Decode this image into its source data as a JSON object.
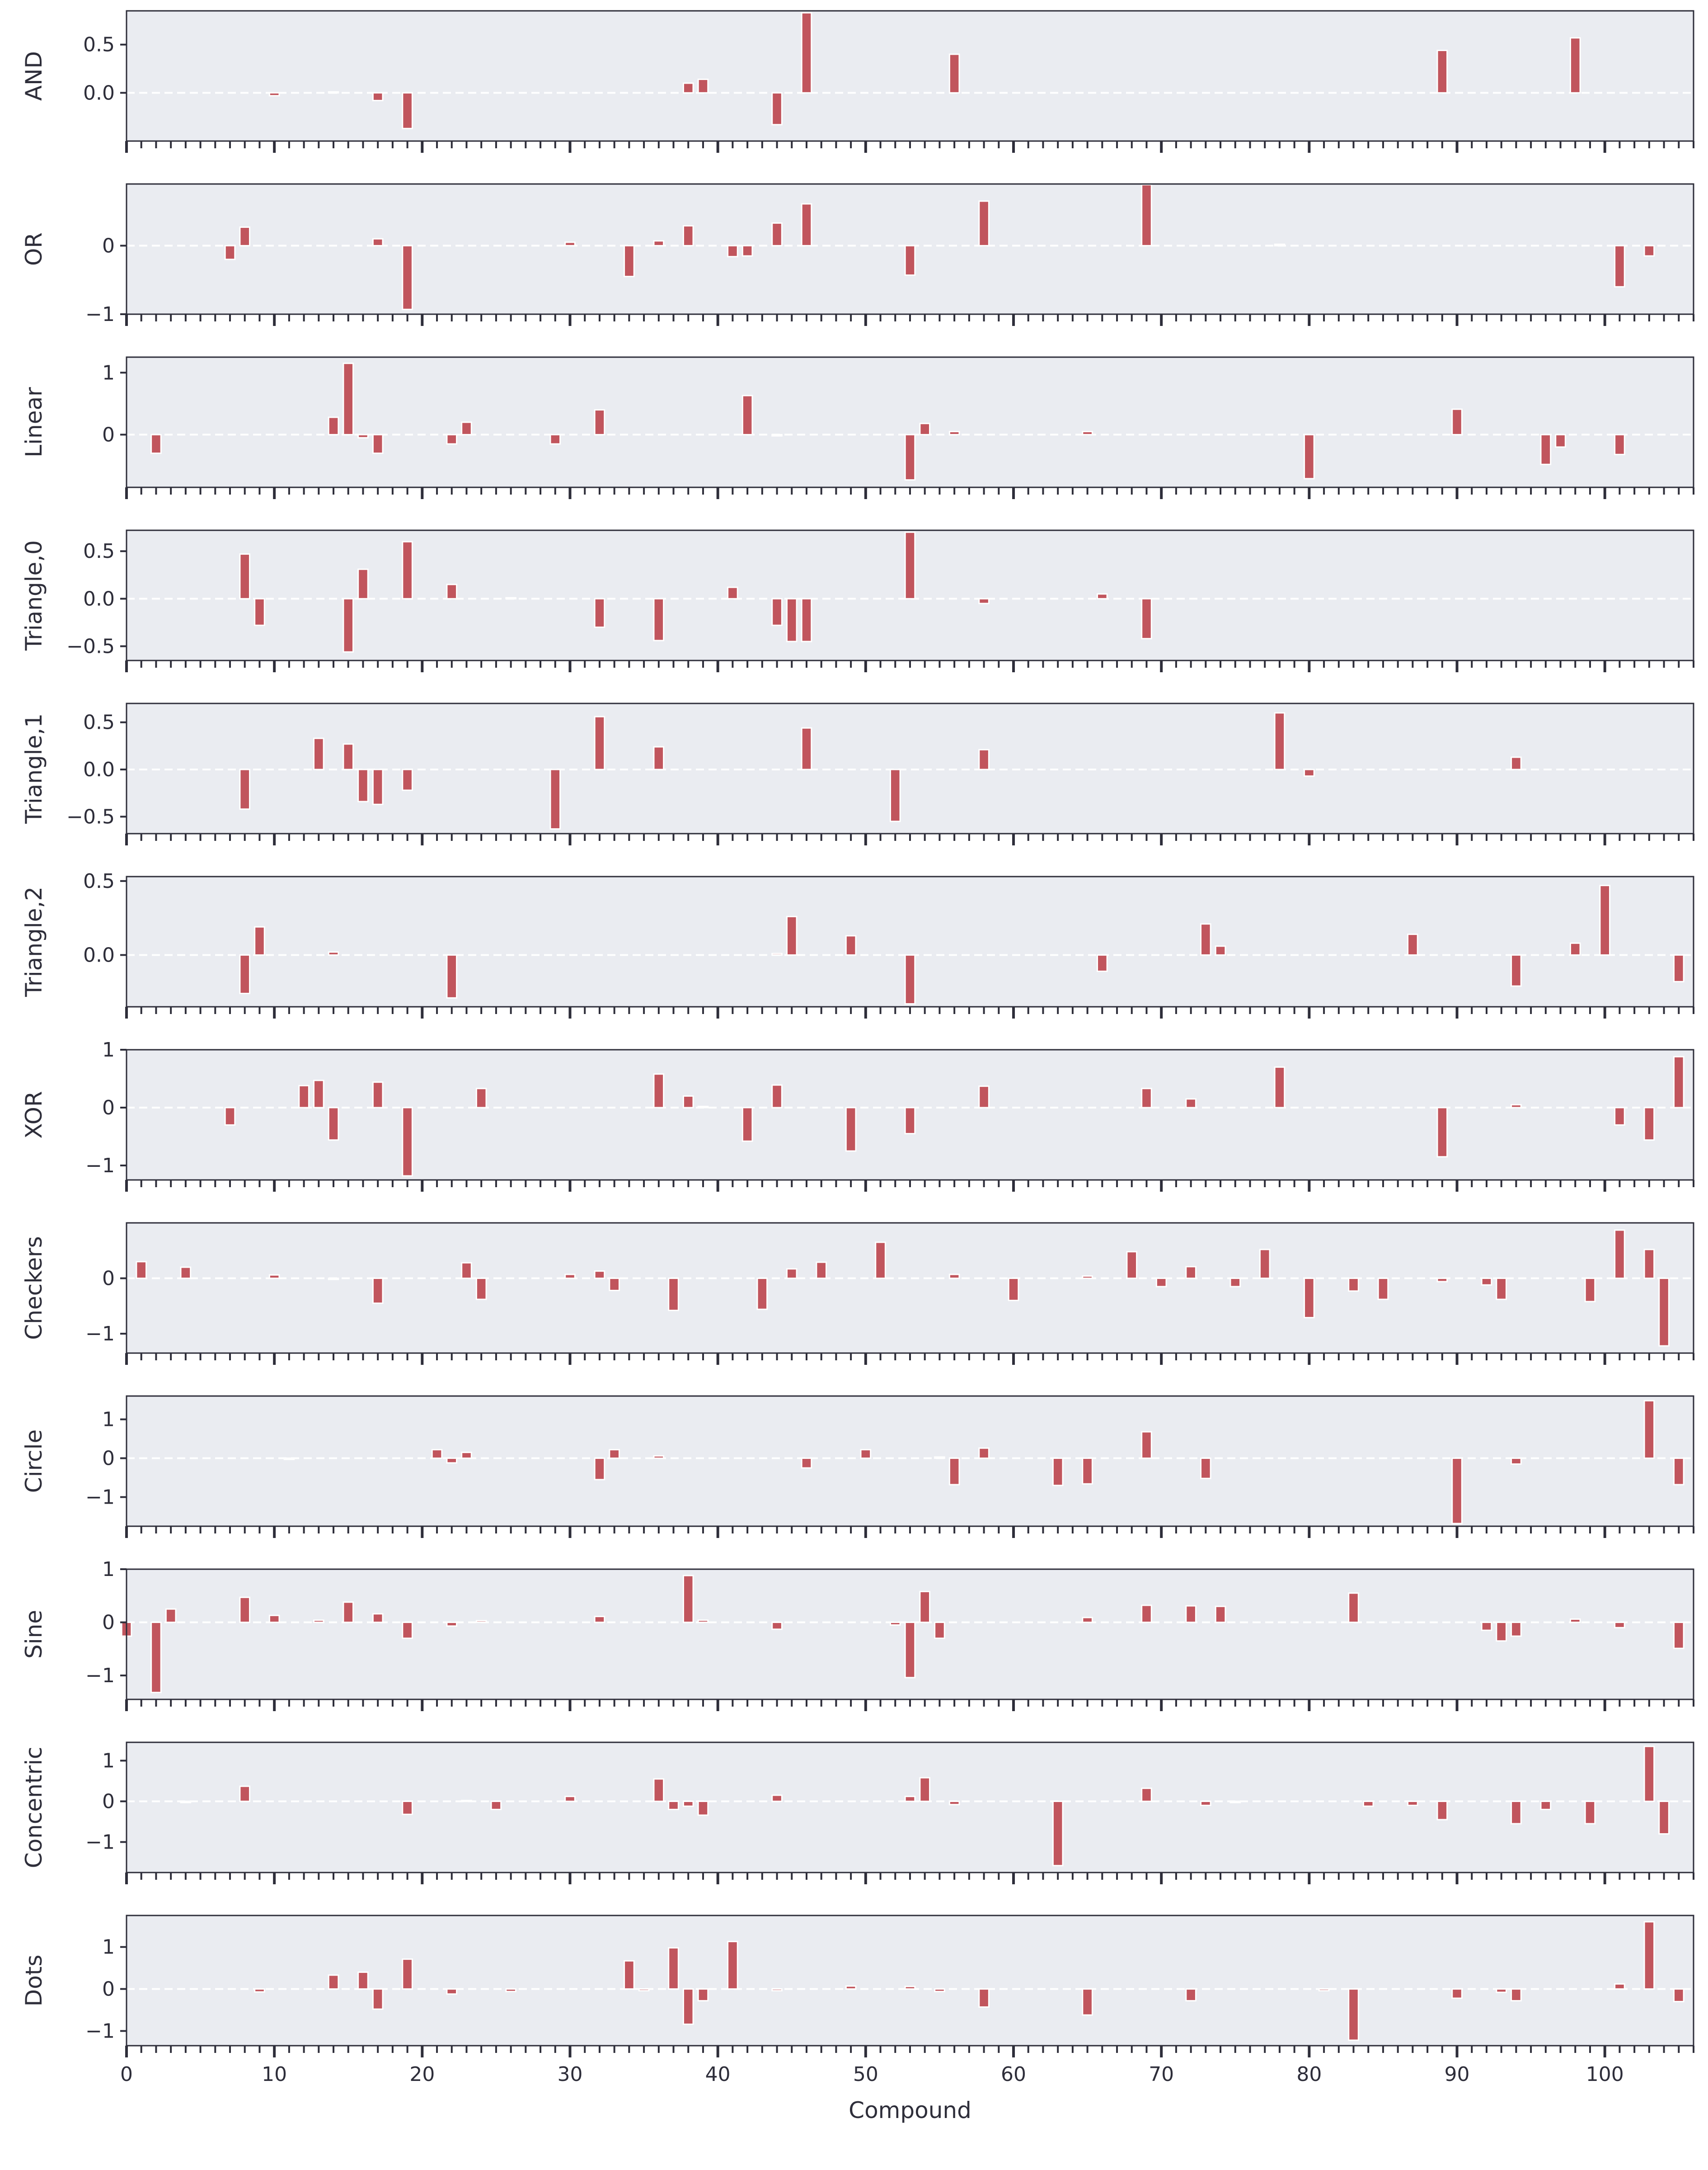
{
  "chart_data": {
    "type": "bar",
    "subplots": 12,
    "shared_x": true,
    "xlabel": "Compound",
    "xlim": [
      0,
      106
    ],
    "x_ticks": [
      0,
      10,
      20,
      30,
      40,
      50,
      60,
      70,
      80,
      90,
      100
    ],
    "x_minor_step": 1,
    "bar_color": "#c1555d",
    "bar_edge_color": "#ffffff",
    "background": "#eaecf1",
    "zero_line": "white-dashed",
    "panels": [
      {
        "ylabel": "AND",
        "ylim": [
          -0.5,
          0.85
        ],
        "yticks": [
          0.0,
          0.5
        ],
        "ytick_labels": [
          "0.0",
          "0.5"
        ],
        "bars": [
          [
            10,
            -0.03
          ],
          [
            14,
            0.01
          ],
          [
            17,
            -0.08
          ],
          [
            19,
            -0.37
          ],
          [
            38,
            0.1
          ],
          [
            39,
            0.14
          ],
          [
            44,
            -0.33
          ],
          [
            46,
            0.83
          ],
          [
            56,
            0.4
          ],
          [
            89,
            0.44
          ],
          [
            98,
            0.57
          ]
        ]
      },
      {
        "ylabel": "OR",
        "ylim": [
          -1.0,
          0.9
        ],
        "yticks": [
          -1,
          0
        ],
        "ytick_labels": [
          "−1",
          "0"
        ],
        "bars": [
          [
            7,
            -0.2
          ],
          [
            8,
            0.27
          ],
          [
            17,
            0.1
          ],
          [
            19,
            -0.93
          ],
          [
            30,
            0.05
          ],
          [
            34,
            -0.45
          ],
          [
            36,
            0.07
          ],
          [
            38,
            0.29
          ],
          [
            41,
            -0.16
          ],
          [
            42,
            -0.15
          ],
          [
            44,
            0.33
          ],
          [
            46,
            0.61
          ],
          [
            53,
            -0.43
          ],
          [
            58,
            0.65
          ],
          [
            69,
            0.89
          ],
          [
            78,
            0.02
          ],
          [
            101,
            -0.6
          ],
          [
            103,
            -0.15
          ]
        ]
      },
      {
        "ylabel": "Linear",
        "ylim": [
          -0.85,
          1.25
        ],
        "yticks": [
          0,
          1
        ],
        "ytick_labels": [
          "0",
          "1"
        ],
        "bars": [
          [
            2,
            -0.3
          ],
          [
            14,
            0.28
          ],
          [
            15,
            1.15
          ],
          [
            16,
            -0.05
          ],
          [
            17,
            -0.3
          ],
          [
            22,
            -0.15
          ],
          [
            23,
            0.2
          ],
          [
            29,
            -0.15
          ],
          [
            32,
            0.4
          ],
          [
            42,
            0.63
          ],
          [
            44,
            -0.02
          ],
          [
            53,
            -0.73
          ],
          [
            54,
            0.18
          ],
          [
            56,
            0.05
          ],
          [
            65,
            0.05
          ],
          [
            80,
            -0.71
          ],
          [
            90,
            0.41
          ],
          [
            96,
            -0.48
          ],
          [
            97,
            -0.2
          ],
          [
            101,
            -0.32
          ]
        ]
      },
      {
        "ylabel": "Triangle,0",
        "ylim": [
          -0.65,
          0.72
        ],
        "yticks": [
          -0.5,
          0.0,
          0.5
        ],
        "ytick_labels": [
          "−0.5",
          "0.0",
          "0.5"
        ],
        "bars": [
          [
            8,
            0.47
          ],
          [
            9,
            -0.28
          ],
          [
            15,
            -0.56
          ],
          [
            16,
            0.31
          ],
          [
            19,
            0.6
          ],
          [
            22,
            0.15
          ],
          [
            26,
            0.01
          ],
          [
            32,
            -0.3
          ],
          [
            36,
            -0.44
          ],
          [
            41,
            0.12
          ],
          [
            44,
            -0.28
          ],
          [
            45,
            -0.45
          ],
          [
            46,
            -0.45
          ],
          [
            53,
            0.7
          ],
          [
            58,
            -0.05
          ],
          [
            66,
            0.05
          ],
          [
            69,
            -0.42
          ]
        ]
      },
      {
        "ylabel": "Triangle,1",
        "ylim": [
          -0.68,
          0.7
        ],
        "yticks": [
          -0.5,
          0.0,
          0.5
        ],
        "ytick_labels": [
          "−0.5",
          "0.0",
          "0.5"
        ],
        "bars": [
          [
            8,
            -0.42
          ],
          [
            13,
            0.33
          ],
          [
            15,
            0.27
          ],
          [
            16,
            -0.34
          ],
          [
            17,
            -0.37
          ],
          [
            19,
            -0.22
          ],
          [
            29,
            -0.63
          ],
          [
            32,
            0.56
          ],
          [
            36,
            0.24
          ],
          [
            46,
            0.44
          ],
          [
            52,
            -0.55
          ],
          [
            58,
            0.21
          ],
          [
            78,
            0.6
          ],
          [
            80,
            -0.07
          ],
          [
            94,
            0.13
          ]
        ]
      },
      {
        "ylabel": "Triangle,2",
        "ylim": [
          -0.35,
          0.53
        ],
        "yticks": [
          0.0,
          0.5
        ],
        "ytick_labels": [
          "0.0",
          "0.5"
        ],
        "bars": [
          [
            8,
            -0.26
          ],
          [
            9,
            0.19
          ],
          [
            14,
            0.02
          ],
          [
            22,
            -0.29
          ],
          [
            44,
            0.01
          ],
          [
            45,
            0.26
          ],
          [
            49,
            0.13
          ],
          [
            53,
            -0.33
          ],
          [
            66,
            -0.11
          ],
          [
            73,
            0.21
          ],
          [
            74,
            0.06
          ],
          [
            87,
            0.14
          ],
          [
            94,
            -0.21
          ],
          [
            98,
            0.08
          ],
          [
            100,
            0.47
          ],
          [
            105,
            -0.18
          ]
        ]
      },
      {
        "ylabel": "XOR",
        "ylim": [
          -1.25,
          1.0
        ],
        "yticks": [
          -1,
          0,
          1
        ],
        "ytick_labels": [
          "−1",
          "0",
          "1"
        ],
        "bars": [
          [
            7,
            -0.3
          ],
          [
            12,
            0.38
          ],
          [
            13,
            0.47
          ],
          [
            14,
            -0.56
          ],
          [
            17,
            0.44
          ],
          [
            19,
            -1.18
          ],
          [
            24,
            0.33
          ],
          [
            36,
            0.58
          ],
          [
            38,
            0.2
          ],
          [
            39,
            0.02
          ],
          [
            42,
            -0.58
          ],
          [
            44,
            0.39
          ],
          [
            49,
            -0.75
          ],
          [
            53,
            -0.45
          ],
          [
            58,
            0.37
          ],
          [
            69,
            0.33
          ],
          [
            72,
            0.15
          ],
          [
            78,
            0.7
          ],
          [
            89,
            -0.85
          ],
          [
            94,
            0.05
          ],
          [
            101,
            -0.3
          ],
          [
            103,
            -0.56
          ],
          [
            105,
            0.88
          ]
        ]
      },
      {
        "ylabel": "Checkers",
        "ylim": [
          -1.35,
          1.0
        ],
        "yticks": [
          -1,
          0
        ],
        "ytick_labels": [
          "−1",
          "0"
        ],
        "bars": [
          [
            1,
            0.3
          ],
          [
            4,
            0.2
          ],
          [
            10,
            0.06
          ],
          [
            14,
            -0.02
          ],
          [
            17,
            -0.45
          ],
          [
            23,
            0.28
          ],
          [
            24,
            -0.38
          ],
          [
            30,
            0.07
          ],
          [
            32,
            0.13
          ],
          [
            33,
            -0.22
          ],
          [
            37,
            -0.58
          ],
          [
            43,
            -0.56
          ],
          [
            45,
            0.17
          ],
          [
            47,
            0.29
          ],
          [
            51,
            0.65
          ],
          [
            56,
            0.07
          ],
          [
            60,
            -0.4
          ],
          [
            65,
            0.04
          ],
          [
            68,
            0.48
          ],
          [
            70,
            -0.15
          ],
          [
            72,
            0.21
          ],
          [
            75,
            -0.15
          ],
          [
            77,
            0.52
          ],
          [
            80,
            -0.71
          ],
          [
            83,
            -0.23
          ],
          [
            85,
            -0.38
          ],
          [
            89,
            -0.06
          ],
          [
            92,
            -0.12
          ],
          [
            93,
            -0.38
          ],
          [
            99,
            -0.42
          ],
          [
            101,
            0.87
          ],
          [
            103,
            0.52
          ],
          [
            104,
            -1.22
          ]
        ]
      },
      {
        "ylabel": "Circle",
        "ylim": [
          -1.75,
          1.6
        ],
        "yticks": [
          -1,
          0,
          1
        ],
        "ytick_labels": [
          "−1",
          "0",
          "1"
        ],
        "bars": [
          [
            11,
            -0.03
          ],
          [
            21,
            0.22
          ],
          [
            22,
            -0.12
          ],
          [
            23,
            0.15
          ],
          [
            32,
            -0.55
          ],
          [
            33,
            0.22
          ],
          [
            36,
            0.06
          ],
          [
            46,
            -0.25
          ],
          [
            50,
            0.22
          ],
          [
            55,
            0.03
          ],
          [
            56,
            -0.68
          ],
          [
            58,
            0.26
          ],
          [
            63,
            -0.7
          ],
          [
            65,
            -0.66
          ],
          [
            69,
            0.68
          ],
          [
            73,
            -0.52
          ],
          [
            90,
            -1.68
          ],
          [
            94,
            -0.15
          ],
          [
            103,
            1.48
          ],
          [
            105,
            -0.68
          ]
        ]
      },
      {
        "ylabel": "Sine",
        "ylim": [
          -1.45,
          1.0
        ],
        "yticks": [
          -1,
          0,
          1
        ],
        "ytick_labels": [
          "−1",
          "0",
          "1"
        ],
        "bars": [
          [
            0,
            -0.26
          ],
          [
            2,
            -1.32
          ],
          [
            3,
            0.25
          ],
          [
            8,
            0.47
          ],
          [
            10,
            0.13
          ],
          [
            13,
            0.04
          ],
          [
            15,
            0.38
          ],
          [
            17,
            0.16
          ],
          [
            19,
            -0.3
          ],
          [
            22,
            -0.07
          ],
          [
            24,
            0.03
          ],
          [
            32,
            0.11
          ],
          [
            38,
            0.88
          ],
          [
            39,
            0.04
          ],
          [
            44,
            -0.13
          ],
          [
            52,
            -0.05
          ],
          [
            53,
            -1.04
          ],
          [
            54,
            0.58
          ],
          [
            55,
            -0.3
          ],
          [
            65,
            0.09
          ],
          [
            69,
            0.32
          ],
          [
            72,
            0.31
          ],
          [
            74,
            0.3
          ],
          [
            83,
            0.55
          ],
          [
            92,
            -0.15
          ],
          [
            93,
            -0.35
          ],
          [
            94,
            -0.26
          ],
          [
            98,
            0.06
          ],
          [
            101,
            -0.1
          ],
          [
            105,
            -0.49
          ]
        ]
      },
      {
        "ylabel": "Concentric",
        "ylim": [
          -1.75,
          1.45
        ],
        "yticks": [
          -1,
          0,
          1
        ],
        "ytick_labels": [
          "−1",
          "0",
          "1"
        ],
        "bars": [
          [
            8,
            0.37
          ],
          [
            4,
            -0.03
          ],
          [
            19,
            -0.32
          ],
          [
            23,
            0.02
          ],
          [
            25,
            -0.2
          ],
          [
            30,
            0.12
          ],
          [
            36,
            0.55
          ],
          [
            37,
            -0.2
          ],
          [
            38,
            -0.12
          ],
          [
            39,
            -0.34
          ],
          [
            44,
            0.15
          ],
          [
            53,
            0.12
          ],
          [
            54,
            0.58
          ],
          [
            56,
            -0.08
          ],
          [
            63,
            -1.58
          ],
          [
            69,
            0.32
          ],
          [
            73,
            -0.1
          ],
          [
            75,
            -0.03
          ],
          [
            84,
            -0.12
          ],
          [
            87,
            -0.1
          ],
          [
            89,
            -0.45
          ],
          [
            94,
            -0.55
          ],
          [
            96,
            -0.2
          ],
          [
            99,
            -0.55
          ],
          [
            103,
            1.35
          ],
          [
            104,
            -0.8
          ]
        ]
      },
      {
        "ylabel": "Dots",
        "ylim": [
          -1.35,
          1.75
        ],
        "yticks": [
          -1,
          0,
          1
        ],
        "ytick_labels": [
          "−1",
          "0",
          "1"
        ],
        "bars": [
          [
            9,
            -0.07
          ],
          [
            14,
            0.33
          ],
          [
            16,
            0.4
          ],
          [
            17,
            -0.48
          ],
          [
            19,
            0.71
          ],
          [
            22,
            -0.12
          ],
          [
            26,
            -0.06
          ],
          [
            34,
            0.67
          ],
          [
            35,
            -0.04
          ],
          [
            37,
            0.98
          ],
          [
            38,
            -0.84
          ],
          [
            39,
            -0.28
          ],
          [
            41,
            1.13
          ],
          [
            44,
            -0.04
          ],
          [
            49,
            0.07
          ],
          [
            53,
            0.06
          ],
          [
            55,
            -0.06
          ],
          [
            58,
            -0.43
          ],
          [
            65,
            -0.62
          ],
          [
            72,
            -0.28
          ],
          [
            81,
            -0.04
          ],
          [
            83,
            -1.22
          ],
          [
            90,
            -0.22
          ],
          [
            93,
            -0.08
          ],
          [
            94,
            -0.28
          ],
          [
            101,
            0.12
          ],
          [
            103,
            1.6
          ],
          [
            105,
            -0.3
          ]
        ]
      }
    ]
  }
}
